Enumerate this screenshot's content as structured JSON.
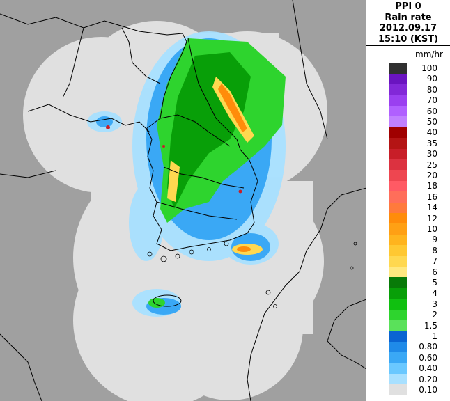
{
  "title": {
    "line1": "PPI 0",
    "line2": "Rain rate",
    "line3": "2012.09.17",
    "line4": "15:10 (KST)"
  },
  "legend": {
    "unit": "mm/hr",
    "colors": [
      "#e0e0e0",
      "#a8e0ff",
      "#6ac8ff",
      "#3aa8f5",
      "#1f8ae8",
      "#0a64d2",
      "#5ae15a",
      "#2ed42e",
      "#10c010",
      "#089f08",
      "#087a08",
      "#ffe880",
      "#ffd850",
      "#ffc832",
      "#ffb41e",
      "#ffa014",
      "#ff8c0a",
      "#ff7a3c",
      "#ff6e5a",
      "#ff5a64",
      "#ee4650",
      "#dc3240",
      "#c81e28",
      "#b41414",
      "#a00000",
      "#c080ff",
      "#b060ff",
      "#9a40f0",
      "#8228d8",
      "#6a14c0",
      "#303030"
    ],
    "labels": [
      "0.10",
      "0.20",
      "0.40",
      "0.60",
      "0.80",
      "1",
      "1.5",
      "2",
      "3",
      "4",
      "5",
      "6",
      "7",
      "8",
      "9",
      "10",
      "12",
      "14",
      "16",
      "18",
      "20",
      "25",
      "30",
      "35",
      "40",
      "50",
      "60",
      "70",
      "80",
      "90",
      "100"
    ]
  },
  "map": {
    "title": "",
    "background": "#a0a0a0",
    "coverage_color": "#e0e0e0",
    "coastline_color": "#000000"
  }
}
